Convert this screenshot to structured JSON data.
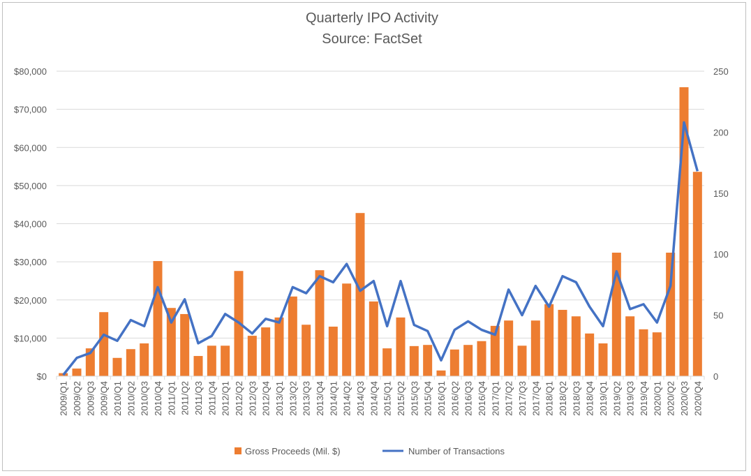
{
  "chart_data": {
    "type": "bar+line",
    "title": "Quarterly IPO Activity",
    "subtitle": "Source: FactSet",
    "categories": [
      "2009/Q1",
      "2009/Q2",
      "2009/Q3",
      "2009/Q4",
      "2010/Q1",
      "2010/Q2",
      "2010/Q3",
      "2010/Q4",
      "2011/Q1",
      "2011/Q2",
      "2011/Q3",
      "2011/Q4",
      "2012/Q1",
      "2012/Q2",
      "2012/Q3",
      "2012/Q4",
      "2013/Q1",
      "2013/Q2",
      "2013/Q3",
      "2013/Q4",
      "2014/Q1",
      "2014/Q2",
      "2014/Q3",
      "2014/Q4",
      "2015/Q1",
      "2015/Q2",
      "2015/Q3",
      "2015/Q4",
      "2016/Q1",
      "2016/Q2",
      "2016/Q3",
      "2016/Q4",
      "2017/Q1",
      "2017/Q2",
      "2017/Q3",
      "2017/Q4",
      "2018/Q1",
      "2018/Q2",
      "2018/Q3",
      "2018/Q4",
      "2019/Q1",
      "2019/Q2",
      "2019/Q3",
      "2019/Q4",
      "2020/Q1",
      "2020/Q2",
      "2020/Q3",
      "2020/Q4"
    ],
    "series": [
      {
        "name": "Gross Proceeds (Mil. $)",
        "type": "bar",
        "axis": "left",
        "color": "#ED7D31",
        "values": [
          800,
          2000,
          7300,
          16800,
          4800,
          7100,
          8600,
          30200,
          17900,
          16300,
          5300,
          8000,
          8000,
          27600,
          10600,
          12800,
          15400,
          20900,
          13500,
          27800,
          13000,
          24300,
          42800,
          19600,
          7300,
          15400,
          7900,
          8200,
          1500,
          7000,
          8200,
          9200,
          13200,
          14600,
          8000,
          14600,
          18900,
          17400,
          15700,
          11200,
          8600,
          32400,
          15700,
          12300,
          11500,
          32400,
          75800,
          53600
        ]
      },
      {
        "name": "Number of Transactions",
        "type": "line",
        "axis": "right",
        "color": "#4472C4",
        "values": [
          1,
          15,
          19,
          34,
          29,
          46,
          41,
          73,
          44,
          63,
          27,
          33,
          51,
          44,
          35,
          47,
          44,
          73,
          68,
          82,
          77,
          92,
          70,
          78,
          41,
          78,
          42,
          37,
          13,
          38,
          45,
          38,
          34,
          71,
          50,
          74,
          57,
          82,
          77,
          57,
          41,
          86,
          55,
          59,
          44,
          74,
          208,
          168
        ]
      }
    ],
    "y_left": {
      "min": 0,
      "max": 80000,
      "ticks": [
        "$0",
        "$10,000",
        "$20,000",
        "$30,000",
        "$40,000",
        "$50,000",
        "$60,000",
        "$70,000",
        "$80,000"
      ]
    },
    "y_right": {
      "min": 0,
      "max": 250,
      "ticks": [
        "0",
        "50",
        "100",
        "150",
        "200",
        "250"
      ]
    },
    "grid": true,
    "legend": "bottom"
  }
}
